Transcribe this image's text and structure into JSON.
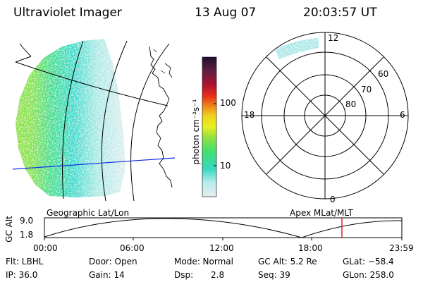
{
  "header": {
    "instrument": "Ultraviolet Imager",
    "date": "13 Aug 07",
    "time": "20:03:57 UT"
  },
  "colorbar": {
    "unit_label": "photon cm⁻²s⁻¹",
    "ticks": [
      "100",
      "10"
    ]
  },
  "polar": {
    "hours": {
      "top": "12",
      "left": "18",
      "right": "6",
      "bottom": "0"
    },
    "latitudes": [
      "60",
      "70",
      "80"
    ]
  },
  "timeline": {
    "left_caption": "Geographic Lat/Lon",
    "right_caption": "Apex MLat/MLT",
    "y_axis_label": "GC Alt",
    "y_ticks": [
      "9.0",
      "1.8"
    ],
    "x_ticks": [
      "00:00",
      "06:00",
      "12:00",
      "18:00",
      "23:59"
    ],
    "marker_color": "#e01010"
  },
  "status": {
    "filter": "Flt: LBHL",
    "door": "Door: Open",
    "mode": "Mode: Normal",
    "gc_alt": "GC Alt: 5.2 Re",
    "glat": "GLat: −58.4",
    "ip": "IP: 36.0",
    "gain": "Gain: 14",
    "dsp_label": "Dsp:",
    "dsp_value": "2.8",
    "seq": "Seq: 39",
    "glon": "GLon: 258.0"
  }
}
